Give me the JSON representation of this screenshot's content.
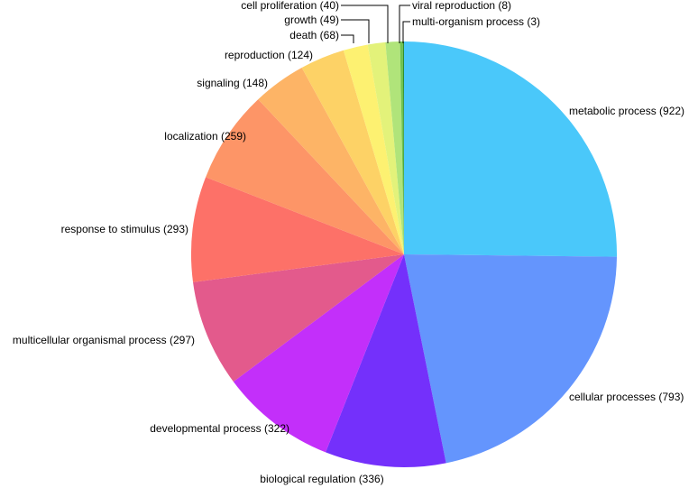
{
  "chart_data": {
    "type": "pie",
    "title": "",
    "slices": [
      {
        "label": "metabolic process (922)",
        "value": 922,
        "color": "#4ac8fa"
      },
      {
        "label": "cellular processes (793)",
        "value": 793,
        "color": "#6495fd"
      },
      {
        "label": "biological regulation (336)",
        "value": 336,
        "color": "#7430fb"
      },
      {
        "label": "developmental process (322)",
        "value": 322,
        "color": "#c32ffa"
      },
      {
        "label": "multicellular organismal process (297)",
        "value": 297,
        "color": "#e35a8c"
      },
      {
        "label": "response to stimulus (293)",
        "value": 293,
        "color": "#fd7168"
      },
      {
        "label": "localization (259)",
        "value": 259,
        "color": "#fd9567"
      },
      {
        "label": "signaling (148)",
        "value": 148,
        "color": "#fdb466"
      },
      {
        "label": "reproduction (124)",
        "value": 124,
        "color": "#fdd266"
      },
      {
        "label": "death (68)",
        "value": 68,
        "color": "#fdf171"
      },
      {
        "label": "growth (49)",
        "value": 49,
        "color": "#e3f27a"
      },
      {
        "label": "cell proliferation (40)",
        "value": 40,
        "color": "#b0e47a"
      },
      {
        "label": "viral reproduction (8)",
        "value": 8,
        "color": "#6fc24f"
      },
      {
        "label": "multi-organism process (3)",
        "value": 3,
        "color": "#2f8f2f"
      }
    ]
  }
}
